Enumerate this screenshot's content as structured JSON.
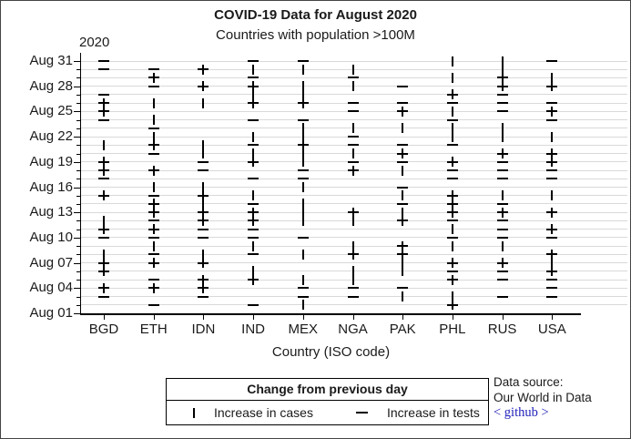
{
  "title": "COVID-19 Data for August 2020",
  "subtitle": "Countries with population >100M",
  "y_axis": {
    "year_label": "2020",
    "tick_labels": [
      "Aug 31",
      "Aug 28",
      "Aug 25",
      "Aug 22",
      "Aug 19",
      "Aug 16",
      "Aug 13",
      "Aug 10",
      "Aug 07",
      "Aug 04",
      "Aug 01"
    ]
  },
  "x_axis": {
    "title": "Country (ISO code)"
  },
  "legend": {
    "title": "Change from previous day",
    "case_label": "Increase in cases",
    "test_label": "Increase in tests"
  },
  "source": {
    "line1": "Data source:",
    "line2": "Our World in Data",
    "link_text": "< github >",
    "link_color": "#2222bb"
  },
  "chart_data": {
    "type": "scatter",
    "title": "COVID-19 Data for August 2020",
    "subtitle": "Countries with population >100M",
    "xlabel": "Country (ISO code)",
    "ylabel": "2020",
    "x_categories": [
      "BGD",
      "ETH",
      "IDN",
      "IND",
      "MEX",
      "NGA",
      "PAK",
      "PHL",
      "RUS",
      "USA"
    ],
    "y_range": [
      "Aug 01",
      "Aug 31"
    ],
    "y_tick_labels": [
      "Aug 31",
      "Aug 28",
      "Aug 25",
      "Aug 22",
      "Aug 19",
      "Aug 16",
      "Aug 13",
      "Aug 10",
      "Aug 07",
      "Aug 04",
      "Aug 01"
    ],
    "grid": "horizontal, one line per day",
    "legend_position": "bottom",
    "marker_types": {
      "cases": "vertical bar | = increase in cases vs previous day",
      "tests": "horizontal dash — = increase in tests vs previous day"
    },
    "series": [
      {
        "country": "BGD",
        "cases_days": [
          4,
          6,
          7,
          8,
          11,
          12,
          15,
          18,
          19,
          21,
          25,
          26
        ],
        "tests_days": [
          3,
          4,
          6,
          7,
          10,
          11,
          15,
          17,
          18,
          19,
          24,
          25,
          26,
          27,
          30,
          31
        ]
      },
      {
        "country": "ETH",
        "cases_days": [
          4,
          7,
          9,
          11,
          13,
          14,
          16,
          18,
          21,
          22,
          24,
          26,
          29
        ],
        "tests_days": [
          2,
          4,
          5,
          7,
          8,
          10,
          11,
          12,
          13,
          14,
          15,
          18,
          20,
          21,
          23,
          28,
          29,
          30
        ]
      },
      {
        "country": "IDN",
        "cases_days": [
          4,
          5,
          7,
          8,
          12,
          13,
          14,
          15,
          16,
          20,
          21,
          26,
          28,
          30
        ],
        "tests_days": [
          3,
          4,
          5,
          7,
          10,
          11,
          12,
          13,
          15,
          18,
          19,
          28,
          30
        ]
      },
      {
        "country": "IND",
        "cases_days": [
          5,
          6,
          9,
          12,
          13,
          15,
          19,
          20,
          22,
          26,
          27,
          28,
          30
        ],
        "tests_days": [
          2,
          5,
          8,
          10,
          11,
          12,
          13,
          14,
          17,
          19,
          21,
          24,
          26,
          28,
          29,
          31
        ]
      },
      {
        "country": "MEX",
        "cases_days": [
          2,
          5,
          8,
          12,
          13,
          14,
          16,
          19,
          20,
          21,
          22,
          23,
          26,
          27,
          28,
          30
        ],
        "tests_days": [
          3,
          4,
          10,
          17,
          18,
          21,
          24,
          26,
          31
        ]
      },
      {
        "country": "NGA",
        "cases_days": [
          5,
          6,
          8,
          9,
          12,
          13,
          18,
          20,
          23,
          28,
          30
        ],
        "tests_days": [
          3,
          4,
          8,
          13,
          18,
          19,
          21,
          22,
          25,
          26,
          29
        ]
      },
      {
        "country": "PAK",
        "cases_days": [
          3,
          6,
          7,
          8,
          9,
          12,
          13,
          15,
          18,
          20,
          23,
          25
        ],
        "tests_days": [
          4,
          8,
          9,
          12,
          14,
          16,
          19,
          20,
          21,
          25,
          26,
          28
        ]
      },
      {
        "country": "PHL",
        "cases_days": [
          2,
          3,
          5,
          7,
          9,
          11,
          13,
          14,
          15,
          19,
          22,
          23,
          25,
          27,
          29,
          31
        ],
        "tests_days": [
          2,
          5,
          6,
          7,
          10,
          12,
          13,
          14,
          15,
          17,
          18,
          19,
          21,
          24,
          26,
          27
        ]
      },
      {
        "country": "RUS",
        "cases_days": [
          7,
          9,
          13,
          15,
          20,
          22,
          23,
          28,
          29,
          30,
          31
        ],
        "tests_days": [
          3,
          5,
          6,
          7,
          10,
          11,
          12,
          13,
          14,
          17,
          18,
          19,
          20,
          25,
          26,
          27,
          28,
          29
        ]
      },
      {
        "country": "USA",
        "cases_days": [
          6,
          7,
          8,
          11,
          13,
          15,
          19,
          20,
          22,
          25,
          28,
          29
        ],
        "tests_days": [
          3,
          4,
          5,
          6,
          8,
          10,
          11,
          13,
          17,
          18,
          19,
          20,
          24,
          25,
          26,
          28,
          31
        ]
      }
    ]
  }
}
